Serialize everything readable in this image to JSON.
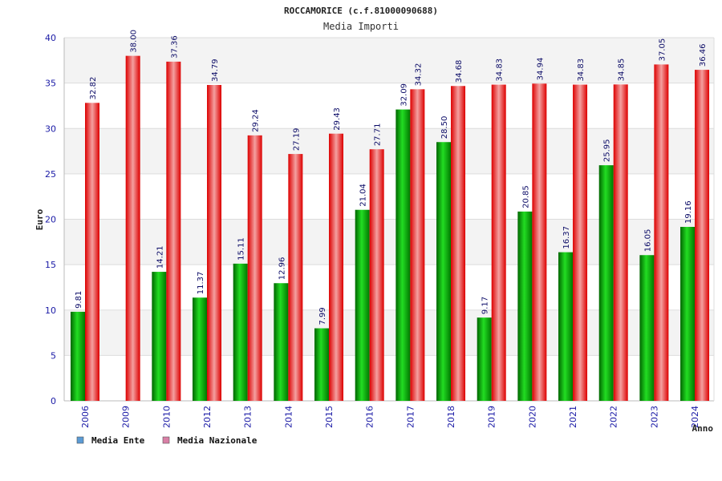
{
  "chart_data": {
    "type": "bar",
    "title": "ROCCAMORICE (c.f.81000090688)",
    "subtitle": "Media Importi",
    "xlabel": "Anno",
    "ylabel": "Euro",
    "ylim": [
      0,
      40
    ],
    "yticks": [
      0,
      5,
      10,
      15,
      20,
      25,
      30,
      35,
      40
    ],
    "grid": true,
    "legend_position": "bottom-left",
    "categories": [
      "2006",
      "2009",
      "2010",
      "2012",
      "2013",
      "2014",
      "2015",
      "2016",
      "2017",
      "2018",
      "2019",
      "2020",
      "2021",
      "2022",
      "2023",
      "2024"
    ],
    "series": [
      {
        "name": "Media Ente",
        "color": "#00bb00",
        "legend_color": "#5b9bd5",
        "values": [
          9.81,
          null,
          14.21,
          11.37,
          15.11,
          12.96,
          7.99,
          21.04,
          32.09,
          28.5,
          9.17,
          20.85,
          16.37,
          25.95,
          16.05,
          19.16
        ],
        "labels": [
          "9.81",
          "",
          "14.21",
          "11.37",
          "15.11",
          "12.96",
          "7.99",
          "21.04",
          "32.09",
          "28.50",
          "9.17",
          "20.85",
          "16.37",
          "25.95",
          "16.05",
          "19.16"
        ]
      },
      {
        "name": "Media Nazionale",
        "color": "#ee1111",
        "legend_color": "#d97fa6",
        "values": [
          32.82,
          38.0,
          37.36,
          34.79,
          29.24,
          27.19,
          29.43,
          27.71,
          34.32,
          34.68,
          34.83,
          34.94,
          34.83,
          34.85,
          37.05,
          36.46
        ],
        "labels": [
          "32.82",
          "38.00",
          "37.36",
          "34.79",
          "29.24",
          "27.19",
          "29.43",
          "27.71",
          "34.32",
          "34.68",
          "34.83",
          "34.94",
          "34.83",
          "34.85",
          "37.05",
          "36.46"
        ]
      }
    ]
  }
}
